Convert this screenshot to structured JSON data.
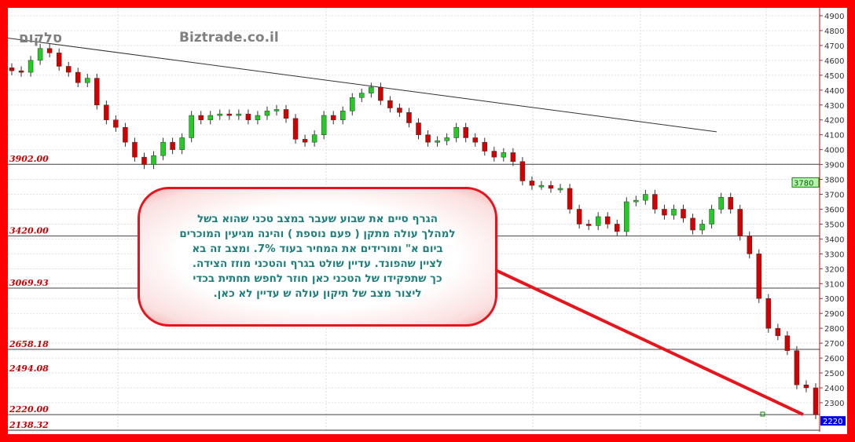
{
  "header": {
    "brand": "Biztrade.co.il",
    "symbol": "סלקום"
  },
  "callout": {
    "text": "הגרף סיים את שבוע שעבר במצב טכני שהוא בשל\nלמהלך עולה מתקן ( פעם נוספת ) והינה מגיעין המוכרים\nביום א\" ומורידים את המחיר בעוד 7%. ומצב זה בא\nלציין שהפונד. עדיין שולט בגרף והטכני מוזז הצידה.\nכך שתפקידו של הטכני כאן חוזר לחפש תחתית בכדי\nליצור מצב של תיקון עולה ש עדיין לא כאן."
  },
  "colors": {
    "border": "#ff0000",
    "up": "#22cc22",
    "down": "#d40000",
    "trend": "#333333",
    "arrow": "#e8141c",
    "last_price_box": "#0000ee",
    "marker_box": "#b8f0b0"
  },
  "chart_data": {
    "type": "candlestick",
    "ylim": [
      2100,
      4950
    ],
    "y_ticks": [
      2300,
      2400,
      2500,
      2600,
      2700,
      2800,
      2900,
      3000,
      3100,
      3200,
      3300,
      3400,
      3500,
      3600,
      3700,
      3800,
      3900,
      4000,
      4100,
      4200,
      4300,
      4400,
      4500,
      4600,
      4700,
      4800,
      4900
    ],
    "close": [
      4530,
      4520,
      4600,
      4680,
      4650,
      4560,
      4520,
      4450,
      4480,
      4300,
      4200,
      4150,
      4050,
      3950,
      3900,
      3960,
      4050,
      4000,
      4080,
      4230,
      4200,
      4230,
      4240,
      4230,
      4240,
      4200,
      4230,
      4260,
      4270,
      4210,
      4070,
      4050,
      4100,
      4230,
      4200,
      4260,
      4350,
      4380,
      4420,
      4330,
      4280,
      4250,
      4180,
      4100,
      4050,
      4060,
      4080,
      4150,
      4080,
      4050,
      3990,
      3950,
      3980,
      3920,
      3790,
      3760,
      3760,
      3740,
      3740,
      3600,
      3500,
      3490,
      3550,
      3500,
      3450,
      3650,
      3660,
      3700,
      3600,
      3560,
      3600,
      3540,
      3460,
      3500,
      3600,
      3680,
      3600,
      3420,
      3300,
      3000,
      2800,
      2750,
      2650,
      2420,
      2400,
      2220
    ],
    "levels": [
      {
        "value": 3902,
        "label": "3902.00"
      },
      {
        "value": 3420,
        "label": "3420.00"
      },
      {
        "value": 3069.93,
        "label": "3069.93"
      },
      {
        "value": 2658.18,
        "label": "2658.18"
      },
      {
        "value": 2494.08,
        "label": "2494.08"
      },
      {
        "value": 2220,
        "label": "2220.00"
      },
      {
        "value": 2138.32,
        "label": "2138.32"
      }
    ],
    "trendline": {
      "from": 4750,
      "to": 4120
    },
    "marker_value": "3780",
    "last_value": "2220",
    "grid": true
  }
}
